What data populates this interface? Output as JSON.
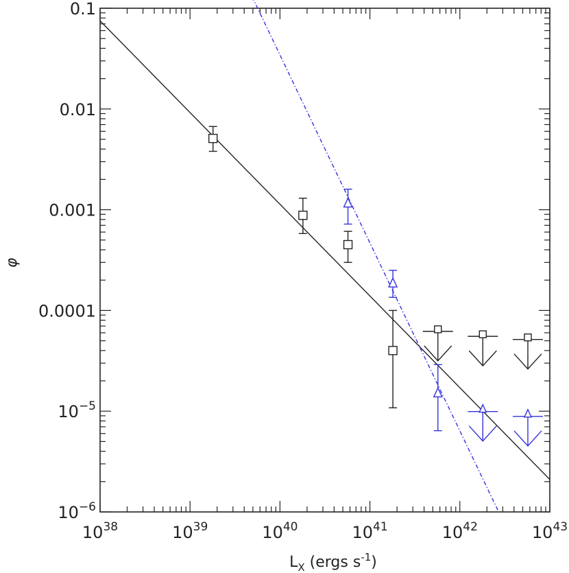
{
  "chart_data": {
    "type": "scatter",
    "xscale": "log",
    "yscale": "log",
    "xlim": [
      1e+38,
      1e+43
    ],
    "ylim": [
      1e-06,
      0.1
    ],
    "grid": false,
    "xlabel": "L_X (ergs s^-1)",
    "xlabel_parts": {
      "base": "L",
      "sub": "X",
      "units": " (ergs s",
      "exp": "-1",
      "close": ")"
    },
    "ylabel": "φ",
    "x_tick_labels": [
      {
        "value": 1e+38,
        "base": "10",
        "exp": "38"
      },
      {
        "value": 1e+39,
        "base": "10",
        "exp": "39"
      },
      {
        "value": 1e+40,
        "base": "10",
        "exp": "40"
      },
      {
        "value": 1e+41,
        "base": "10",
        "exp": "41"
      },
      {
        "value": 1e+42,
        "base": "10",
        "exp": "42"
      },
      {
        "value": 1e+43,
        "base": "10",
        "exp": "43"
      }
    ],
    "y_tick_labels": [
      {
        "value": 0.1,
        "text": "0.1"
      },
      {
        "value": 0.01,
        "text": "0.01"
      },
      {
        "value": 0.001,
        "text": "0.001"
      },
      {
        "value": 0.0001,
        "text": "0.0001"
      },
      {
        "value": 1e-05,
        "base": "10",
        "exp": "−5"
      },
      {
        "value": 1e-06,
        "base": "10",
        "exp": "−6"
      }
    ],
    "series": [
      {
        "color": "#222222",
        "marker": "square",
        "points": [
          {
            "x": 1.8e+39,
            "y": 0.0051,
            "lo": 0.0038,
            "hi": 0.0067
          },
          {
            "x": 1.8e+40,
            "y": 0.00088,
            "lo": 0.00058,
            "hi": 0.0013
          },
          {
            "x": 5.7e+40,
            "y": 0.00045,
            "lo": 0.0003,
            "hi": 0.00061
          },
          {
            "x": 1.8e+41,
            "y": 4e-05,
            "lo": 1.08e-05,
            "hi": 0.0001
          }
        ],
        "upper_limits": [
          {
            "x": 5.7e+41,
            "y": 6.5e-05
          },
          {
            "x": 1.8e+42,
            "y": 5.8e-05
          },
          {
            "x": 5.7e+42,
            "y": 5.4e-05
          }
        ],
        "fit_line": {
          "style": "solid",
          "x": [
            1e+38,
            1e+43
          ],
          "y": [
            0.075,
            2.1e-06
          ]
        }
      },
      {
        "color": "#3333dd",
        "marker": "triangle",
        "points": [
          {
            "x": 5.7e+40,
            "y": 0.00115,
            "lo": 0.00072,
            "hi": 0.0016
          },
          {
            "x": 1.8e+41,
            "y": 0.000185,
            "lo": 0.000135,
            "hi": 0.00025
          },
          {
            "x": 5.7e+41,
            "y": 1.5e-05,
            "lo": 6.4e-06,
            "hi": 2.9e-05
          }
        ],
        "upper_limits": [
          {
            "x": 1.8e+42,
            "y": 1.04e-05
          },
          {
            "x": 5.7e+42,
            "y": 9.3e-06
          }
        ],
        "fit_line": {
          "style": "dash-dot",
          "x": [
            4.9e+39,
            2.7e+42
          ],
          "y": [
            0.13,
            1e-06
          ]
        }
      }
    ]
  }
}
